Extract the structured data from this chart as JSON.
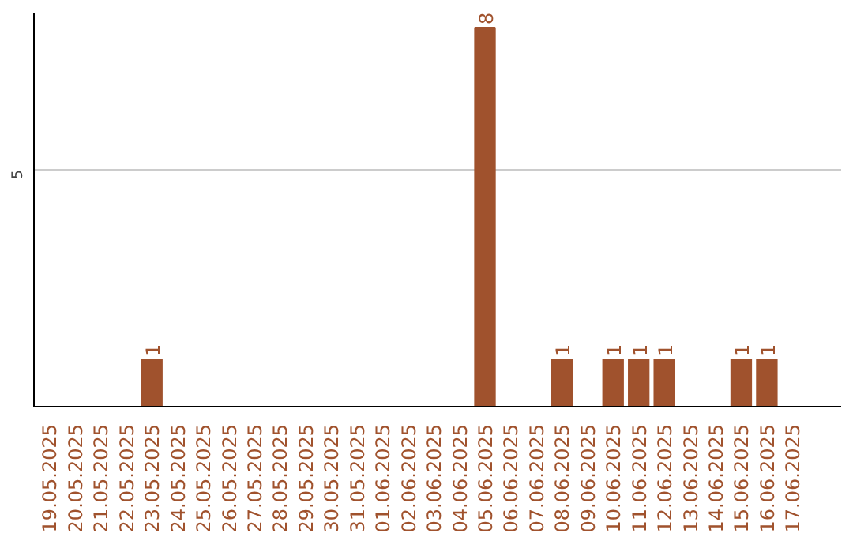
{
  "chart_data": {
    "type": "bar",
    "categories": [
      "19.05.2025",
      "20.05.2025",
      "21.05.2025",
      "22.05.2025",
      "23.05.2025",
      "24.05.2025",
      "25.05.2025",
      "26.05.2025",
      "27.05.2025",
      "28.05.2025",
      "29.05.2025",
      "30.05.2025",
      "31.05.2025",
      "01.06.2025",
      "02.06.2025",
      "03.06.2025",
      "04.06.2025",
      "05.06.2025",
      "06.06.2025",
      "07.06.2025",
      "08.06.2025",
      "09.06.2025",
      "10.06.2025",
      "11.06.2025",
      "12.06.2025",
      "13.06.2025",
      "14.06.2025",
      "15.06.2025",
      "16.06.2025",
      "17.06.2025"
    ],
    "values": [
      0,
      0,
      0,
      0,
      1,
      0,
      0,
      0,
      0,
      0,
      0,
      0,
      0,
      0,
      0,
      0,
      0,
      8,
      0,
      0,
      1,
      0,
      1,
      1,
      1,
      0,
      0,
      1,
      1,
      0
    ],
    "value_labels": [
      null,
      null,
      null,
      null,
      "1",
      null,
      null,
      null,
      null,
      null,
      null,
      null,
      null,
      null,
      null,
      null,
      null,
      "8",
      null,
      null,
      "1",
      null,
      "1",
      "1",
      "1",
      null,
      null,
      "1",
      "1",
      null
    ],
    "color": "#a0522d",
    "ylim": [
      0,
      8.3
    ],
    "yticks": [
      5
    ],
    "grid": "y"
  }
}
